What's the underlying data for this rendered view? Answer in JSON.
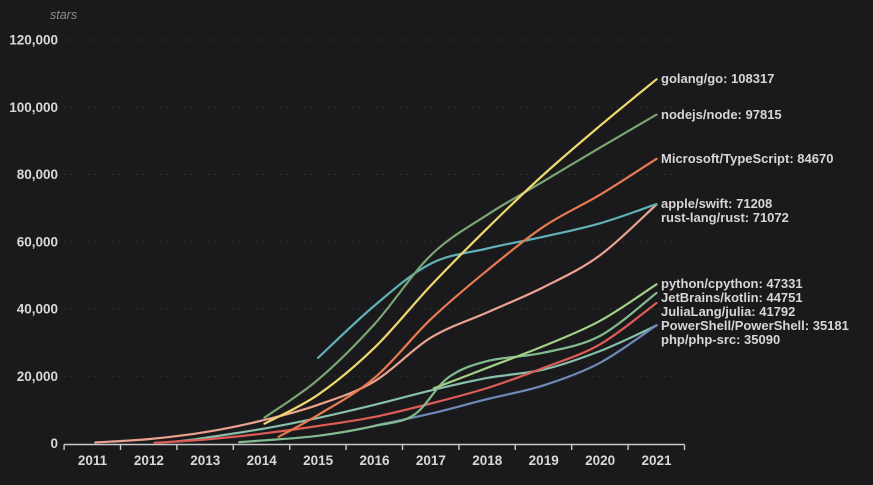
{
  "chart": {
    "y_axis_title": "stars",
    "colors": {
      "background": "#1a1a1c",
      "axis": "#c9c9c9",
      "grid": "rgba(255,255,255,0.09)",
      "tick_text": "#d8d8d8",
      "label_text": "#d6d6d6"
    }
  },
  "chart_data": {
    "type": "line",
    "title": "",
    "xlabel": "",
    "ylabel": "stars",
    "ylim": [
      0,
      120000
    ],
    "y_tick_labels": [
      "0",
      "20,000",
      "40,000",
      "60,000",
      "80,000",
      "100,000",
      "120,000"
    ],
    "y_tick_values": [
      0,
      20000,
      40000,
      60000,
      80000,
      100000,
      120000
    ],
    "x_tick_labels": [
      "2011",
      "2012",
      "2013",
      "2014",
      "2015",
      "2016",
      "2017",
      "2018",
      "2019",
      "2020",
      "2021"
    ],
    "x_tick_values": [
      2011,
      2012,
      2013,
      2014,
      2015,
      2016,
      2017,
      2018,
      2019,
      2020,
      2021
    ],
    "grid": "dashed-horizontal",
    "legend_position": "labels-at-line-ends-right",
    "series": [
      {
        "name": "golang/go",
        "final_value": 108317,
        "label": "golang/go: 108317",
        "color": "#efd96e",
        "points": [
          [
            2014.05,
            5900
          ],
          [
            2015,
            14500
          ],
          [
            2016,
            28500
          ],
          [
            2017,
            47000
          ],
          [
            2018,
            64000
          ],
          [
            2019,
            80000
          ],
          [
            2020,
            94500
          ],
          [
            2021,
            108317
          ]
        ]
      },
      {
        "name": "nodejs/node",
        "final_value": 97815,
        "label": "nodejs/node: 97815",
        "color": "#7aa471",
        "points": [
          [
            2014.05,
            7700
          ],
          [
            2015,
            19000
          ],
          [
            2016,
            35500
          ],
          [
            2017,
            56000
          ],
          [
            2018,
            68000
          ],
          [
            2019,
            78000
          ],
          [
            2020,
            88000
          ],
          [
            2021,
            97815
          ]
        ]
      },
      {
        "name": "Microsoft/TypeScript",
        "final_value": 84670,
        "label": "Microsoft/TypeScript: 84670",
        "color": "#e87a50",
        "points": [
          [
            2014.3,
            2000
          ],
          [
            2015,
            8500
          ],
          [
            2016,
            19500
          ],
          [
            2017,
            37000
          ],
          [
            2018,
            51500
          ],
          [
            2019,
            64500
          ],
          [
            2020,
            74000
          ],
          [
            2021,
            84670
          ]
        ]
      },
      {
        "name": "apple/swift",
        "final_value": 71208,
        "label": "apple/swift: 71208",
        "color": "#62b1b7",
        "points": [
          [
            2015,
            25500
          ],
          [
            2016,
            41000
          ],
          [
            2017,
            53500
          ],
          [
            2018,
            58000
          ],
          [
            2019,
            61500
          ],
          [
            2020,
            65500
          ],
          [
            2021,
            71208
          ]
        ]
      },
      {
        "name": "rust-lang/rust",
        "final_value": 71072,
        "label": "rust-lang/rust: 71072",
        "color": "#eba390",
        "points": [
          [
            2011.05,
            300
          ],
          [
            2012,
            1300
          ],
          [
            2013,
            3400
          ],
          [
            2014,
            6800
          ],
          [
            2015,
            11500
          ],
          [
            2016,
            18500
          ],
          [
            2017,
            31500
          ],
          [
            2018,
            39000
          ],
          [
            2019,
            46500
          ],
          [
            2020,
            56000
          ],
          [
            2021,
            71072
          ]
        ]
      },
      {
        "name": "python/cpython",
        "final_value": 47331,
        "label": "python/cpython: 47331",
        "color": "#a4cf86",
        "points": [
          [
            2017.05,
            16400
          ],
          [
            2018,
            22500
          ],
          [
            2019,
            29000
          ],
          [
            2020,
            36500
          ],
          [
            2021,
            47331
          ]
        ]
      },
      {
        "name": "JetBrains/kotlin",
        "final_value": 44751,
        "label": "JetBrains/kotlin: 44751",
        "color": "#83bb8e",
        "points": [
          [
            2013.6,
            400
          ],
          [
            2014,
            900
          ],
          [
            2015,
            2300
          ],
          [
            2016,
            5200
          ],
          [
            2016.7,
            8500
          ],
          [
            2017.3,
            19500
          ],
          [
            2018,
            24500
          ],
          [
            2019,
            27000
          ],
          [
            2020,
            32000
          ],
          [
            2021,
            44751
          ]
        ]
      },
      {
        "name": "JuliaLang/julia",
        "final_value": 41792,
        "label": "JuliaLang/julia: 41792",
        "color": "#dd5c56",
        "points": [
          [
            2012.1,
            200
          ],
          [
            2013,
            1200
          ],
          [
            2014,
            2900
          ],
          [
            2015,
            5200
          ],
          [
            2016,
            7900
          ],
          [
            2017,
            11900
          ],
          [
            2018,
            16500
          ],
          [
            2019,
            22500
          ],
          [
            2020,
            29500
          ],
          [
            2021,
            41792
          ]
        ]
      },
      {
        "name": "PowerShell/PowerShell",
        "final_value": 35181,
        "label": "PowerShell/PowerShell: 35181",
        "color": "#7089b6",
        "points": [
          [
            2016,
            5300
          ],
          [
            2017,
            8900
          ],
          [
            2018,
            13200
          ],
          [
            2019,
            17300
          ],
          [
            2020,
            24000
          ],
          [
            2021,
            35181
          ]
        ]
      },
      {
        "name": "php/php-src",
        "final_value": 35090,
        "label": "php/php-src: 35090",
        "color": "#88bfab",
        "points": [
          [
            2012.5,
            600
          ],
          [
            2013,
            1700
          ],
          [
            2014,
            4300
          ],
          [
            2015,
            7600
          ],
          [
            2016,
            11500
          ],
          [
            2017,
            15800
          ],
          [
            2018,
            19500
          ],
          [
            2019,
            22000
          ],
          [
            2020,
            27500
          ],
          [
            2021,
            35090
          ]
        ]
      }
    ]
  }
}
